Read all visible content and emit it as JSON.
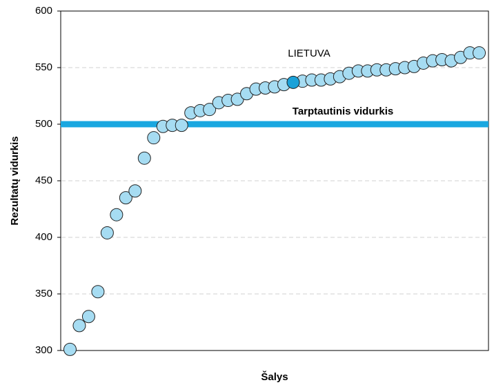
{
  "chart_data": {
    "type": "scatter",
    "xlabel": "Šalys",
    "ylabel": "Rezultatų vidurkis",
    "annotations": [
      "LIETUVA"
    ],
    "hline": {
      "value": 500,
      "label": "Tarptautinis vidurkis",
      "color": "#1aa7e0"
    },
    "xlim": [
      0,
      46
    ],
    "ylim": [
      300,
      600
    ],
    "yticks": [
      300,
      350,
      400,
      450,
      500,
      550,
      600
    ],
    "grid": true,
    "series": [
      {
        "color": "#a6dcf2",
        "x": [
          1,
          2,
          3,
          4,
          5,
          6,
          7,
          8,
          9,
          10,
          11,
          12,
          13,
          14,
          15,
          16,
          17,
          18,
          19,
          20,
          21,
          22,
          23,
          24,
          26,
          27,
          28,
          29,
          30,
          31,
          32,
          33,
          34,
          35,
          36,
          37,
          38,
          39,
          40,
          41,
          42,
          43,
          44,
          45
        ],
        "values": [
          301,
          322,
          330,
          352,
          404,
          420,
          435,
          441,
          470,
          488,
          498,
          499,
          499,
          510,
          512,
          513,
          519,
          521,
          522,
          527,
          531,
          532,
          533,
          535,
          538,
          539,
          539,
          540,
          542,
          545,
          547,
          547,
          548,
          548,
          549,
          550,
          551,
          554,
          556,
          557,
          556,
          559,
          563,
          563
        ]
      },
      {
        "color": "#1ba1d8",
        "x": [
          25
        ],
        "values": [
          537
        ]
      }
    ]
  }
}
